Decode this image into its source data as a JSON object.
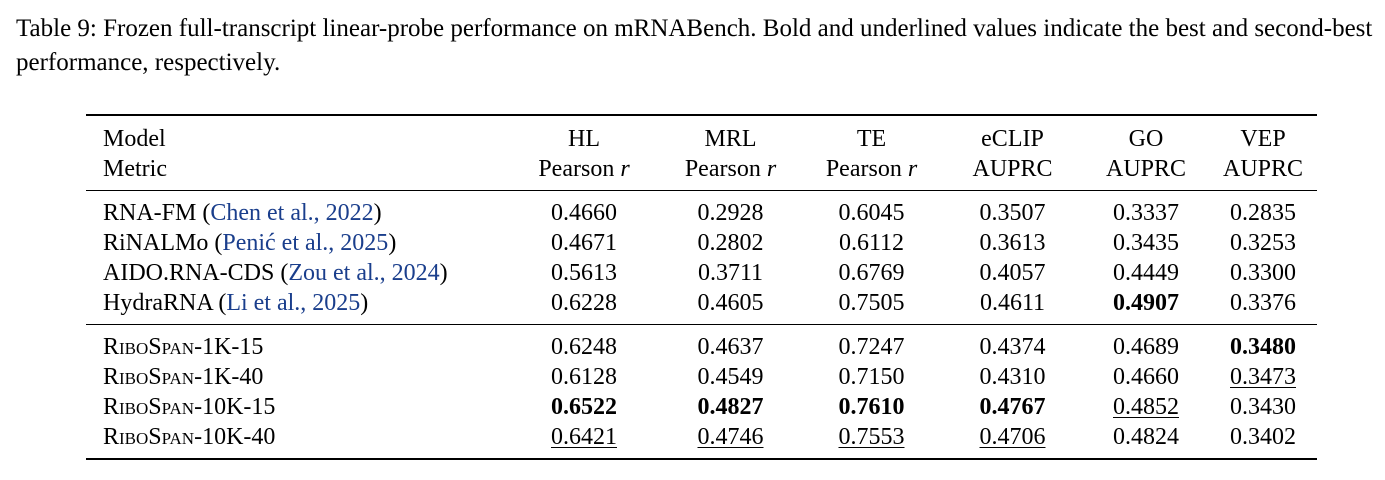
{
  "caption": "Table 9: Frozen full-transcript linear-probe performance on mRNABench. Bold and underlined values indicate the best and second-best performance, respectively.",
  "header": {
    "row1": [
      "Model",
      "HL",
      "MRL",
      "TE",
      "eCLIP",
      "GO",
      "VEP"
    ],
    "row2_label": "Metric",
    "row2": [
      "Pearson",
      "Pearson",
      "Pearson",
      "AUPRC",
      "AUPRC",
      "AUPRC"
    ],
    "r_symbol": "r"
  },
  "baselines": [
    {
      "name": "RNA-FM",
      "cite_open": "(",
      "cite": "Chen et al., 2022",
      "cite_close": ")",
      "values": [
        "0.4660",
        "0.2928",
        "0.6045",
        "0.3507",
        "0.3337",
        "0.2835"
      ]
    },
    {
      "name": "RiNALMo",
      "cite_open": "(",
      "cite": "Penić et al., 2025",
      "cite_close": ")",
      "values": [
        "0.4671",
        "0.2802",
        "0.6112",
        "0.3613",
        "0.3435",
        "0.3253"
      ]
    },
    {
      "name": "AIDO.RNA-CDS",
      "cite_open": "(",
      "cite": "Zou et al., 2024",
      "cite_close": ")",
      "values": [
        "0.5613",
        "0.3711",
        "0.6769",
        "0.4057",
        "0.4449",
        "0.3300"
      ]
    },
    {
      "name": "HydraRNA",
      "cite_open": "(",
      "cite": "Li et al., 2025",
      "cite_close": ")",
      "values": [
        "0.6228",
        "0.4605",
        "0.7505",
        "0.4611",
        "0.4907",
        "0.3376"
      ]
    }
  ],
  "ours": [
    {
      "name": "RiboSpan-1K-15",
      "values": [
        "0.6248",
        "0.4637",
        "0.7247",
        "0.4374",
        "0.4689",
        "0.3480"
      ]
    },
    {
      "name": "RiboSpan-1K-40",
      "values": [
        "0.6128",
        "0.4549",
        "0.7150",
        "0.4310",
        "0.4660",
        "0.3473"
      ]
    },
    {
      "name": "RiboSpan-10K-15",
      "values": [
        "0.6522",
        "0.4827",
        "0.7610",
        "0.4767",
        "0.4852",
        "0.3430"
      ]
    },
    {
      "name": "RiboSpan-10K-40",
      "values": [
        "0.6421",
        "0.4746",
        "0.7553",
        "0.4706",
        "0.4824",
        "0.3402"
      ]
    }
  ],
  "colors": {
    "citation": "#1a3e8c",
    "text": "#000000"
  }
}
